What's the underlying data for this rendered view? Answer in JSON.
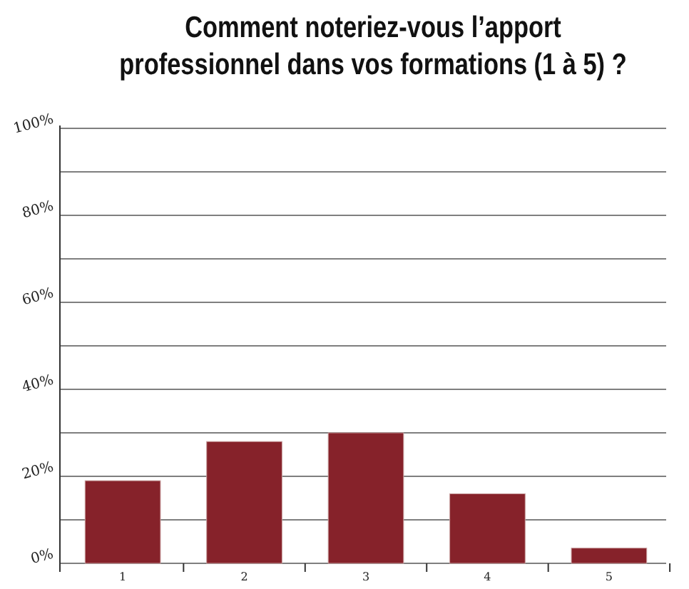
{
  "chart_data": {
    "type": "bar",
    "title": "Comment noteriez-vous l’apport\nprofessionnel dans vos formations (1 à 5) ?",
    "categories": [
      "1",
      "2",
      "3",
      "4",
      "5"
    ],
    "values": [
      19,
      28,
      30,
      16,
      3.5
    ],
    "color": "#86222a",
    "ylim": [
      0,
      100
    ],
    "yticks": [
      {
        "value": 0,
        "label": "0%"
      },
      {
        "value": 10,
        "label": null
      },
      {
        "value": 20,
        "label": "20%"
      },
      {
        "value": 30,
        "label": null
      },
      {
        "value": 40,
        "label": "40%"
      },
      {
        "value": 50,
        "label": null
      },
      {
        "value": 60,
        "label": "60%"
      },
      {
        "value": 70,
        "label": null
      },
      {
        "value": 80,
        "label": "80%"
      },
      {
        "value": 90,
        "label": null
      },
      {
        "value": 100,
        "label": "100%"
      }
    ],
    "grid": "y"
  }
}
